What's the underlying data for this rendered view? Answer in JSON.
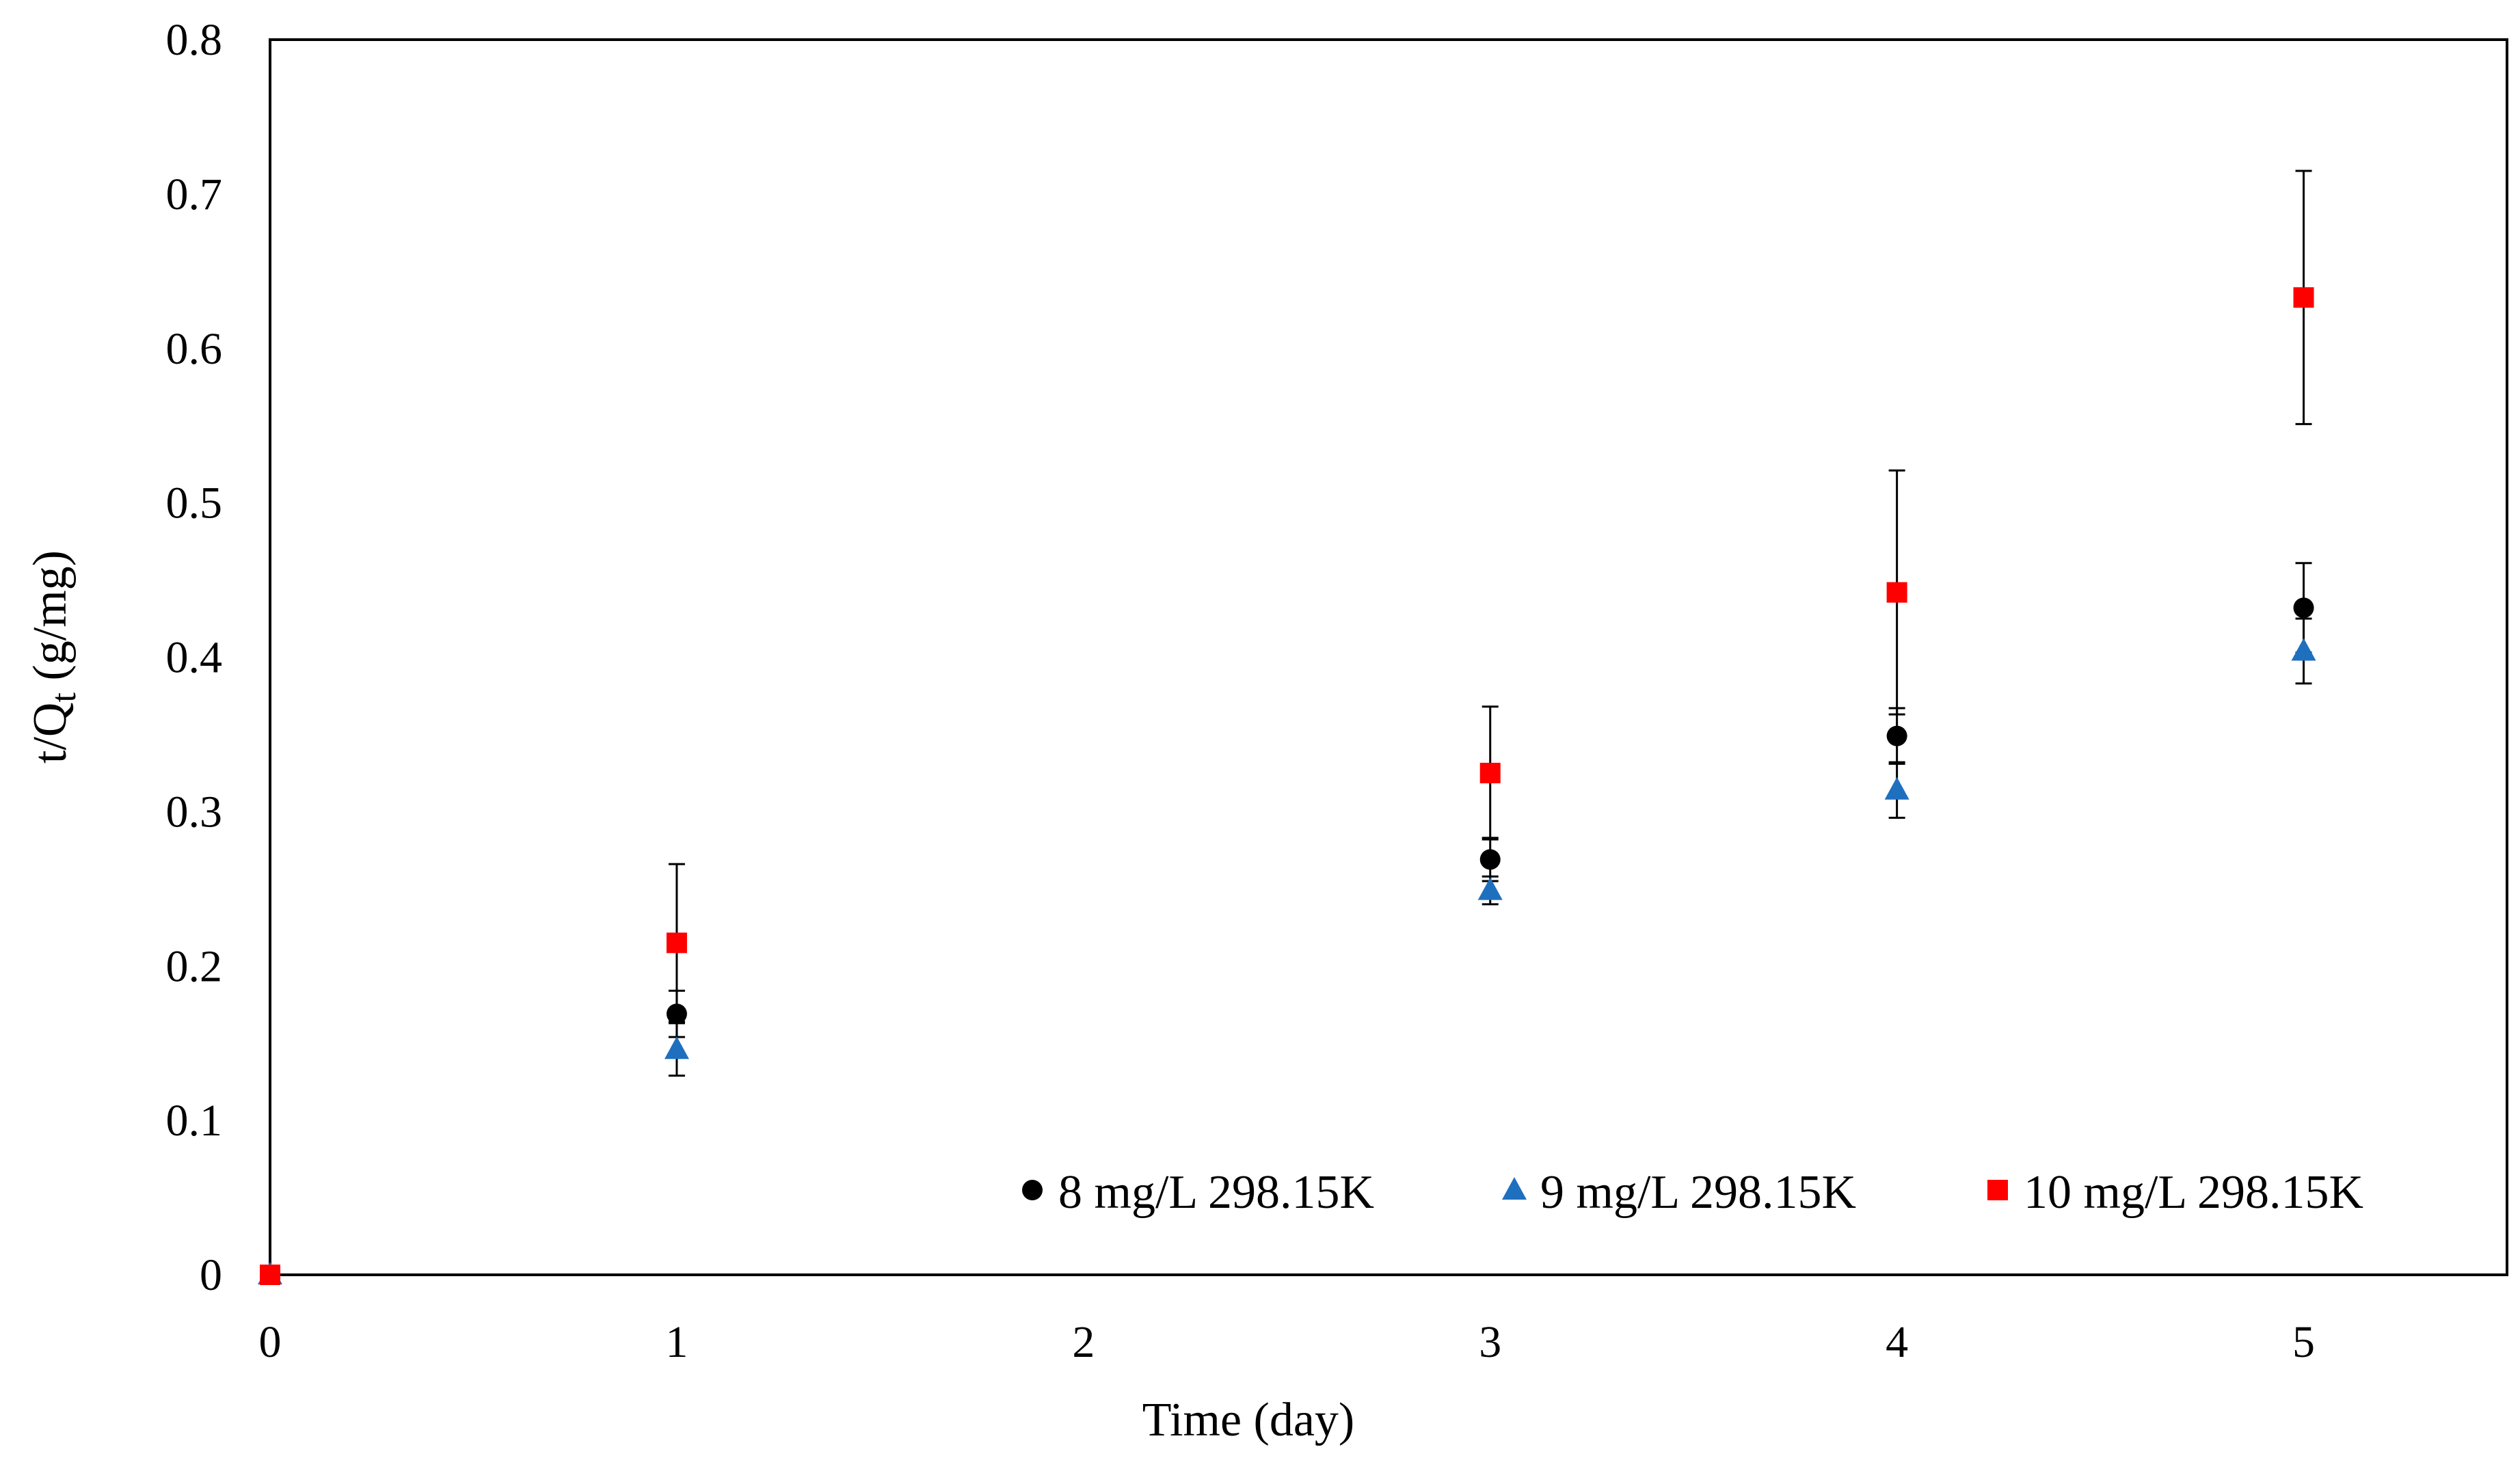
{
  "chart_data": {
    "type": "scatter",
    "title": "",
    "xlabel": "Time  (day)",
    "ylabel_main": "t/Q",
    "ylabel_sub": "t",
    "ylabel_tail": " (g/mg)",
    "xlim": [
      0,
      5.5
    ],
    "ylim": [
      0,
      0.8
    ],
    "xticks": [
      0,
      1,
      2,
      3,
      4,
      5
    ],
    "xtick_labels": [
      "0",
      "1",
      "2",
      "3",
      "4",
      "5"
    ],
    "yticks": [
      0,
      0.1,
      0.2,
      0.3,
      0.4,
      0.5,
      0.6,
      0.7,
      0.8
    ],
    "ytick_labels": [
      "0",
      "0.1",
      "0.2",
      "0.3",
      "0.4",
      "0.5",
      "0.6",
      "0.7",
      "0.8"
    ],
    "grid": false,
    "legend_position": "bottom-right",
    "series": [
      {
        "name": "8 mg/L 298.15K",
        "marker": "circle",
        "color": "#000000",
        "points": [
          {
            "x": 0,
            "y": 0,
            "err": 0
          },
          {
            "x": 1,
            "y": 0.169,
            "err": 0.015
          },
          {
            "x": 3,
            "y": 0.269,
            "err": 0.014
          },
          {
            "x": 4,
            "y": 0.349,
            "err": 0.018
          },
          {
            "x": 5,
            "y": 0.432,
            "err": 0.029
          }
        ]
      },
      {
        "name": "9 mg/L 298.15K",
        "marker": "triangle",
        "color": "#1f6fbf",
        "points": [
          {
            "x": 0,
            "y": 0,
            "err": 0
          },
          {
            "x": 1,
            "y": 0.146,
            "err": 0.017
          },
          {
            "x": 3,
            "y": 0.249,
            "err": 0.009
          },
          {
            "x": 4,
            "y": 0.314,
            "err": 0.018
          },
          {
            "x": 5,
            "y": 0.404,
            "err": 0.021
          }
        ]
      },
      {
        "name": "10 mg/L 298.15K",
        "marker": "square",
        "color": "#ff0000",
        "points": [
          {
            "x": 0,
            "y": 0,
            "err": 0
          },
          {
            "x": 1,
            "y": 0.215,
            "err": 0.051
          },
          {
            "x": 3,
            "y": 0.325,
            "err": 0.043
          },
          {
            "x": 4,
            "y": 0.442,
            "err": 0.079
          },
          {
            "x": 5,
            "y": 0.633,
            "err": 0.082
          }
        ]
      }
    ]
  }
}
